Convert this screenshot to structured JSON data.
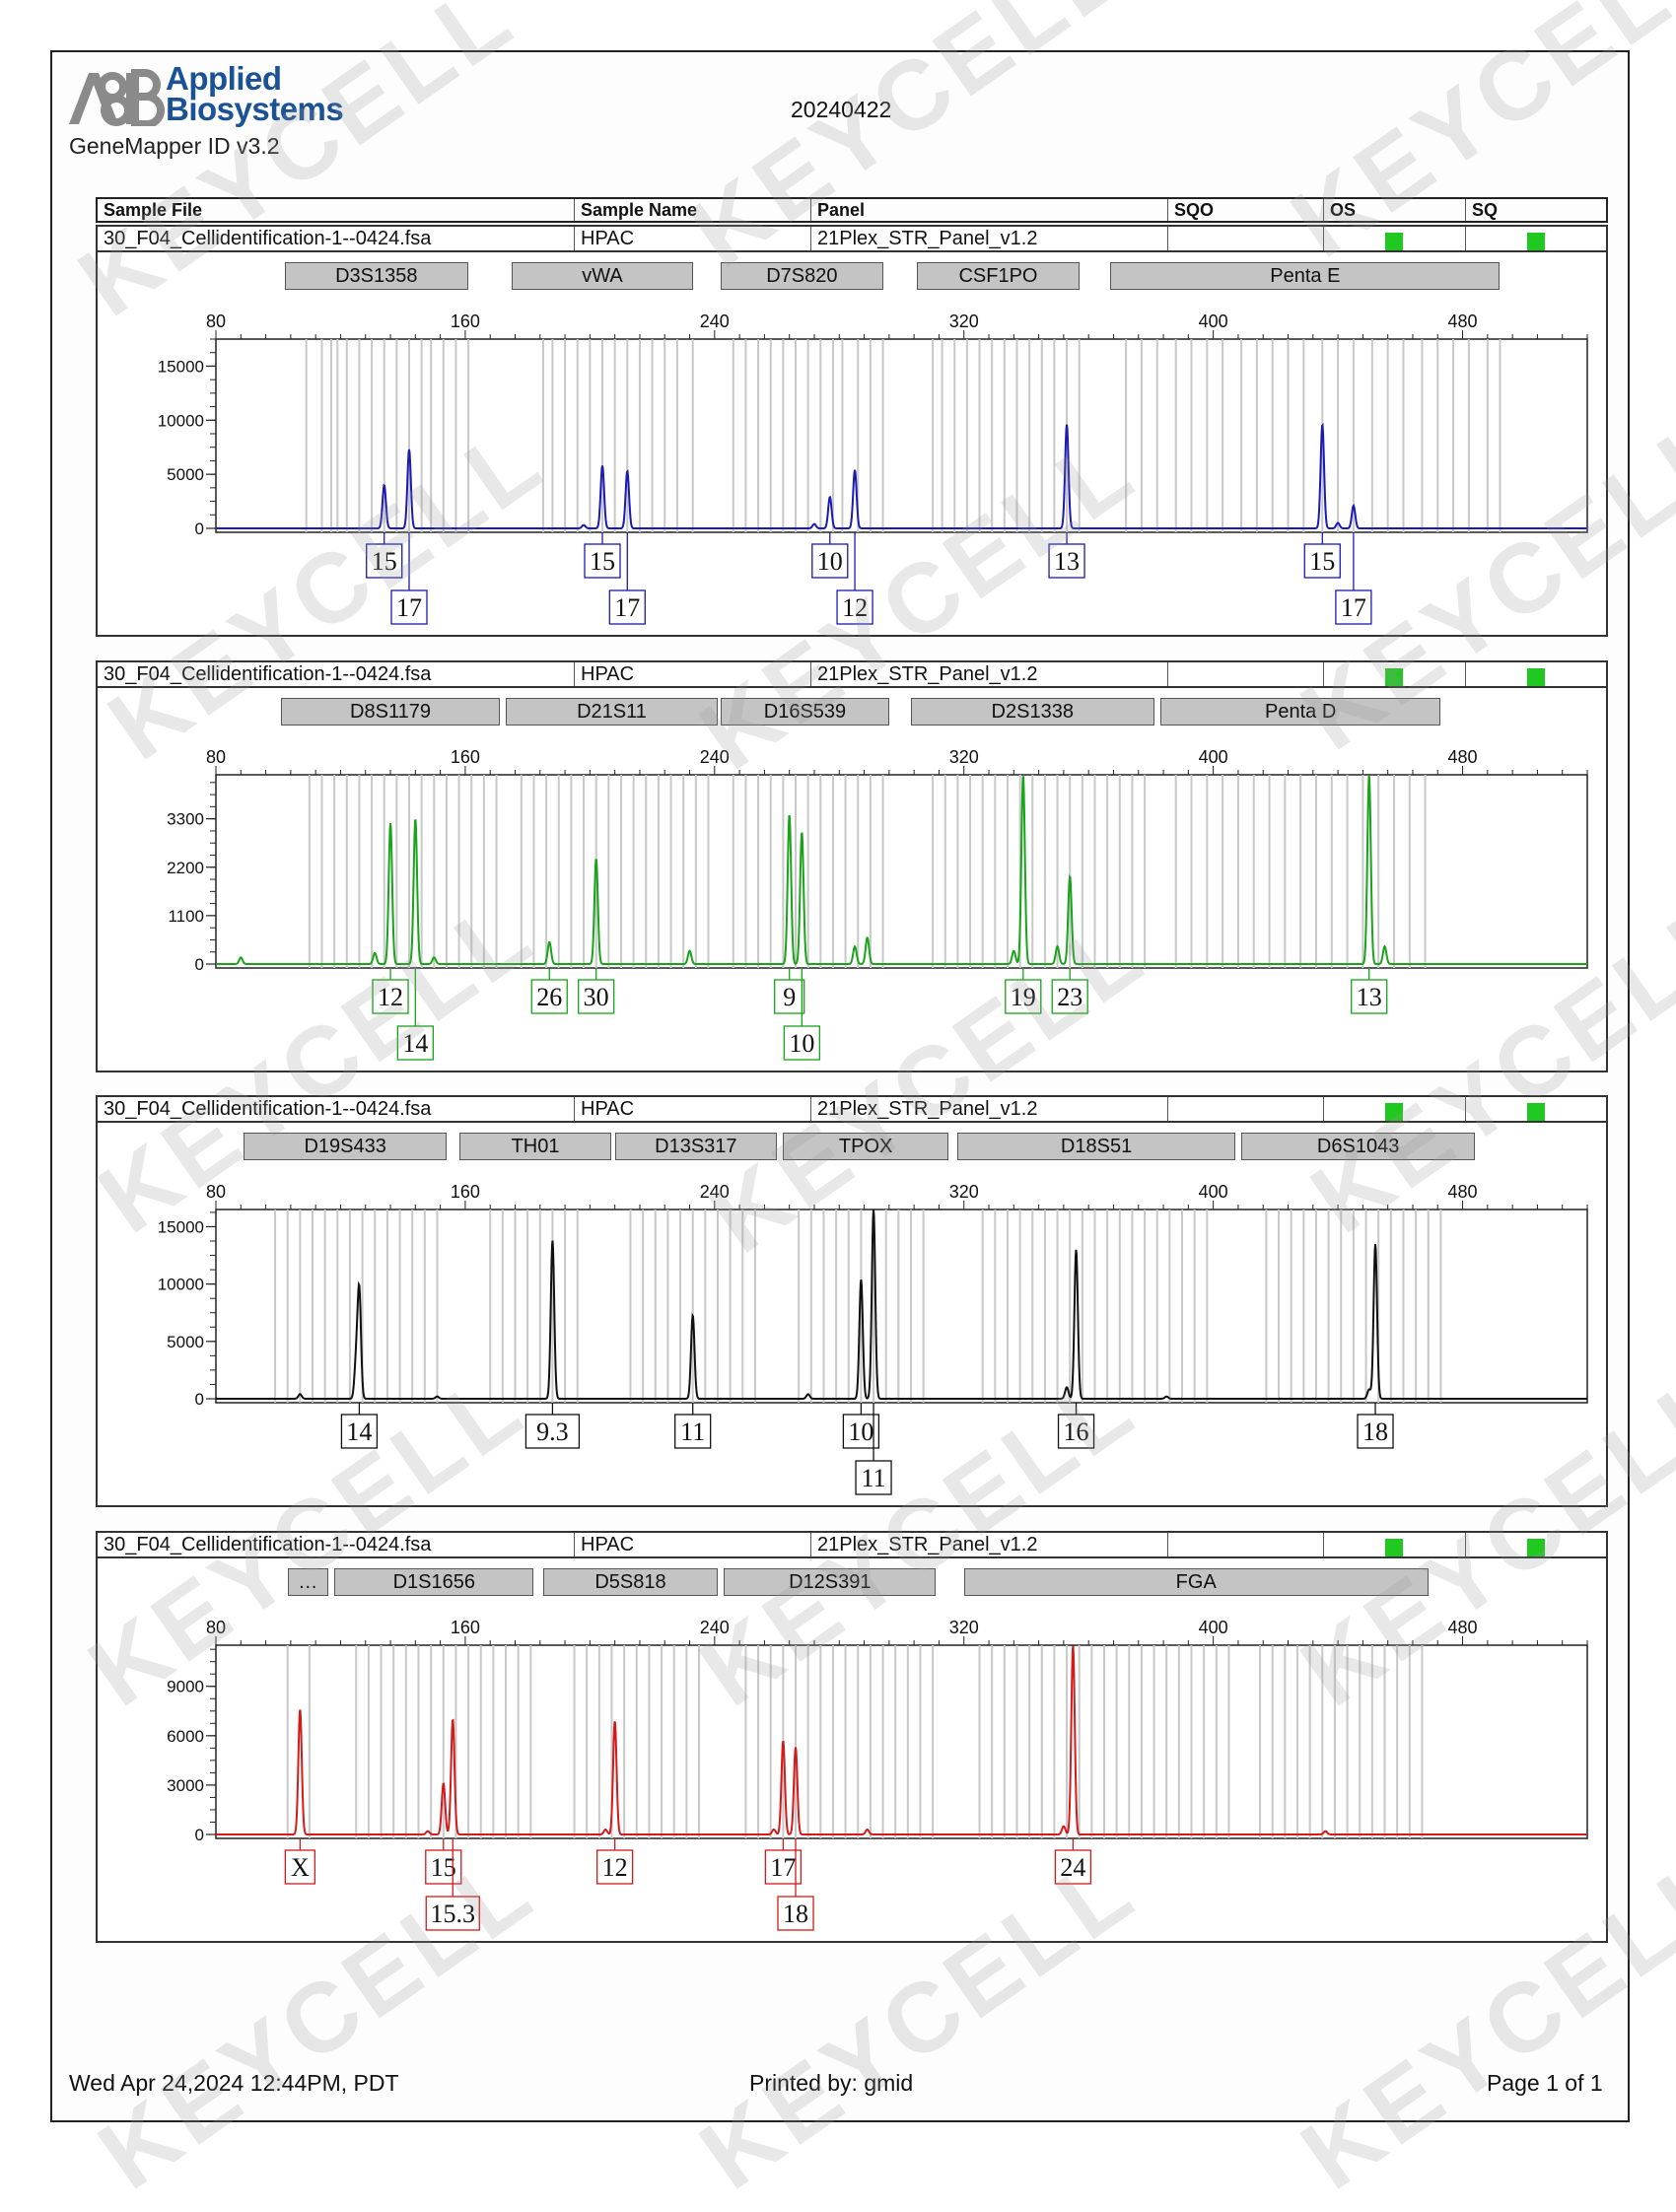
{
  "header": {
    "brand_line1": "Applied",
    "brand_line2": "Biosystems",
    "date": "20240422",
    "software": "GeneMapper ID v3.2"
  },
  "columns": [
    "Sample File",
    "Sample Name",
    "Panel",
    "SQO",
    "OS",
    "SQ"
  ],
  "sample": {
    "file": "30_F04_Cellidentification-1--0424.fsa",
    "name": "HPAC",
    "panel": "21Plex_STR_Panel_v1.2"
  },
  "colors": {
    "blue": "#1a1ab4",
    "green": "#18a418",
    "black": "#111111",
    "red": "#d41a1a",
    "quality": "#20c820"
  },
  "footer": {
    "timestamp": "Wed Apr 24,2024 12:44PM, PDT",
    "printed_by": "Printed by: gmid",
    "page": "Page 1 of 1"
  },
  "watermark": "KEYCELL",
  "chart_data": [
    {
      "type": "line",
      "dye": "blue",
      "x_ticks": [
        80,
        160,
        240,
        320,
        400,
        480
      ],
      "xlim": [
        80,
        520
      ],
      "y_ticks": [
        0,
        5000,
        10000,
        15000
      ],
      "ylim": [
        0,
        17500
      ],
      "loci": [
        {
          "name": "D3S1358",
          "start": 102,
          "end": 161
        },
        {
          "name": "vWA",
          "start": 175,
          "end": 233
        },
        {
          "name": "D7S820",
          "start": 242,
          "end": 294
        },
        {
          "name": "CSF1PO",
          "start": 305,
          "end": 357
        },
        {
          "name": "Penta E",
          "start": 367,
          "end": 492
        }
      ],
      "peaks": [
        {
          "x": 134,
          "y": 4000,
          "label": "15",
          "row": 0
        },
        {
          "x": 142,
          "y": 7300,
          "label": "17",
          "row": 1
        },
        {
          "x": 204,
          "y": 5800,
          "label": "15",
          "row": 0
        },
        {
          "x": 212,
          "y": 5300,
          "label": "17",
          "row": 1
        },
        {
          "x": 277,
          "y": 2900,
          "label": "10",
          "row": 0
        },
        {
          "x": 285,
          "y": 5400,
          "label": "12",
          "row": 1
        },
        {
          "x": 353,
          "y": 9600,
          "label": "13",
          "row": 0
        },
        {
          "x": 435,
          "y": 9600,
          "label": "15",
          "row": 0
        },
        {
          "x": 445,
          "y": 2100,
          "label": "17",
          "row": 1
        }
      ],
      "minor": [
        {
          "x": 198,
          "y": 300
        },
        {
          "x": 272,
          "y": 400
        },
        {
          "x": 440,
          "y": 500
        }
      ],
      "bins": [
        109,
        114,
        117,
        119,
        122,
        126,
        130,
        134,
        138,
        142,
        146,
        149,
        153,
        157,
        161,
        185,
        188,
        192,
        196,
        200,
        204,
        208,
        212,
        216,
        220,
        224,
        228,
        233,
        246,
        250,
        254,
        258,
        262,
        266,
        270,
        274,
        278,
        281,
        286,
        290,
        294,
        310,
        313,
        317,
        321,
        325,
        329,
        333,
        337,
        341,
        345,
        349,
        353,
        357,
        372,
        377,
        382,
        388,
        393,
        398,
        403,
        409,
        414,
        419,
        424,
        429,
        435,
        440,
        445,
        451,
        456,
        461,
        467,
        472,
        477,
        482,
        488,
        492
      ]
    },
    {
      "type": "line",
      "dye": "green",
      "x_ticks": [
        80,
        160,
        240,
        320,
        400,
        480
      ],
      "xlim": [
        80,
        520
      ],
      "y_ticks": [
        0,
        1100,
        2200,
        3300
      ],
      "ylim": [
        0,
        4300
      ],
      "loci": [
        {
          "name": "D8S1179",
          "start": 101,
          "end": 171
        },
        {
          "name": "D21S11",
          "start": 173,
          "end": 241
        },
        {
          "name": "D16S539",
          "start": 242,
          "end": 296
        },
        {
          "name": "D2S1338",
          "start": 303,
          "end": 381
        },
        {
          "name": "Penta D",
          "start": 383,
          "end": 473
        }
      ],
      "peaks": [
        {
          "x": 136,
          "y": 3200,
          "label": "12",
          "row": 0
        },
        {
          "x": 144,
          "y": 3300,
          "label": "14",
          "row": 1
        },
        {
          "x": 187,
          "y": 500,
          "label": "26",
          "row": 0
        },
        {
          "x": 202,
          "y": 2400,
          "label": "30",
          "row": 0
        },
        {
          "x": 264,
          "y": 3400,
          "label": "9",
          "row": 0
        },
        {
          "x": 268,
          "y": 3000,
          "label": "10",
          "row": 1
        },
        {
          "x": 339,
          "y": 4300,
          "label": "19",
          "row": 0
        },
        {
          "x": 354,
          "y": 2000,
          "label": "23",
          "row": 0
        },
        {
          "x": 450,
          "y": 4300,
          "label": "13",
          "row": 0
        }
      ],
      "minor": [
        {
          "x": 88,
          "y": 150
        },
        {
          "x": 131,
          "y": 250
        },
        {
          "x": 150,
          "y": 150
        },
        {
          "x": 232,
          "y": 300
        },
        {
          "x": 285,
          "y": 400
        },
        {
          "x": 289,
          "y": 600
        },
        {
          "x": 336,
          "y": 300
        },
        {
          "x": 350,
          "y": 400
        },
        {
          "x": 455,
          "y": 400
        }
      ],
      "bins": [
        110,
        114,
        118,
        122,
        126,
        130,
        134,
        138,
        142,
        146,
        150,
        154,
        158,
        162,
        166,
        170,
        178,
        182,
        186,
        190,
        194,
        198,
        202,
        206,
        210,
        214,
        218,
        222,
        226,
        230,
        234,
        238,
        246,
        250,
        254,
        258,
        262,
        266,
        270,
        274,
        278,
        282,
        286,
        290,
        294,
        310,
        314,
        318,
        322,
        326,
        330,
        334,
        338,
        342,
        346,
        350,
        354,
        358,
        362,
        366,
        370,
        374,
        378,
        388,
        393,
        398,
        403,
        408,
        413,
        418,
        423,
        428,
        433,
        438,
        443,
        448,
        453,
        458,
        463,
        468
      ]
    },
    {
      "type": "line",
      "dye": "black",
      "x_ticks": [
        80,
        160,
        240,
        320,
        400,
        480
      ],
      "xlim": [
        80,
        520
      ],
      "y_ticks": [
        0,
        5000,
        10000,
        15000
      ],
      "ylim": [
        0,
        16500
      ],
      "loci": [
        {
          "name": "D19S433",
          "start": 89,
          "end": 154
        },
        {
          "name": "TH01",
          "start": 158,
          "end": 207
        },
        {
          "name": "D13S317",
          "start": 208,
          "end": 260
        },
        {
          "name": "TPOX",
          "start": 262,
          "end": 315
        },
        {
          "name": "D18S51",
          "start": 318,
          "end": 407
        },
        {
          "name": "D6S1043",
          "start": 409,
          "end": 484
        }
      ],
      "peaks": [
        {
          "x": 126,
          "y": 9300,
          "label": "14",
          "row": 0
        },
        {
          "x": 188,
          "y": 13800,
          "label": "9.3",
          "row": 0
        },
        {
          "x": 233,
          "y": 7300,
          "label": "11",
          "row": 0
        },
        {
          "x": 287,
          "y": 10400,
          "label": "10",
          "row": 0
        },
        {
          "x": 291,
          "y": 16500,
          "label": "11",
          "row": 1
        },
        {
          "x": 356,
          "y": 13000,
          "label": "16",
          "row": 0
        },
        {
          "x": 452,
          "y": 13500,
          "label": "18",
          "row": 0
        }
      ],
      "minor": [
        {
          "x": 125,
          "y": 3200
        },
        {
          "x": 107,
          "y": 400
        },
        {
          "x": 151,
          "y": 200
        },
        {
          "x": 270,
          "y": 400
        },
        {
          "x": 353,
          "y": 1000
        },
        {
          "x": 450,
          "y": 800
        },
        {
          "x": 385,
          "y": 200
        }
      ],
      "bins": [
        99,
        103,
        107,
        111,
        115,
        119,
        123,
        127,
        131,
        135,
        139,
        143,
        147,
        151,
        168,
        172,
        176,
        180,
        184,
        188,
        192,
        196,
        213,
        217,
        221,
        225,
        229,
        233,
        237,
        241,
        245,
        249,
        253,
        267,
        271,
        275,
        279,
        283,
        287,
        291,
        295,
        299,
        303,
        307,
        326,
        330,
        334,
        338,
        342,
        346,
        350,
        354,
        358,
        362,
        366,
        370,
        374,
        378,
        382,
        386,
        390,
        394,
        398,
        417,
        421,
        425,
        429,
        433,
        437,
        441,
        445,
        449,
        453,
        457,
        461,
        465,
        469,
        473
      ]
    },
    {
      "type": "line",
      "dye": "red",
      "x_ticks": [
        80,
        160,
        240,
        320,
        400,
        480
      ],
      "xlim": [
        80,
        520
      ],
      "y_ticks": [
        0,
        3000,
        6000,
        9000
      ],
      "ylim": [
        0,
        11500
      ],
      "loci": [
        {
          "name": "…",
          "start": 103,
          "end": 116
        },
        {
          "name": "D1S1656",
          "start": 118,
          "end": 182
        },
        {
          "name": "D5S818",
          "start": 185,
          "end": 241
        },
        {
          "name": "D12S391",
          "start": 243,
          "end": 311
        },
        {
          "name": "FGA",
          "start": 320,
          "end": 469
        }
      ],
      "peaks": [
        {
          "x": 107,
          "y": 7600,
          "label": "X",
          "row": 0
        },
        {
          "x": 153,
          "y": 3100,
          "label": "15",
          "row": 0
        },
        {
          "x": 156,
          "y": 7000,
          "label": "15.3",
          "row": 1
        },
        {
          "x": 208,
          "y": 6900,
          "label": "12",
          "row": 0
        },
        {
          "x": 262,
          "y": 5700,
          "label": "17",
          "row": 0
        },
        {
          "x": 266,
          "y": 5300,
          "label": "18",
          "row": 1
        },
        {
          "x": 355,
          "y": 11500,
          "label": "24",
          "row": 0
        }
      ],
      "minor": [
        {
          "x": 148,
          "y": 200
        },
        {
          "x": 205,
          "y": 300
        },
        {
          "x": 259,
          "y": 300
        },
        {
          "x": 289,
          "y": 300
        },
        {
          "x": 352,
          "y": 500
        },
        {
          "x": 436,
          "y": 200
        }
      ],
      "bins": [
        103,
        110,
        125,
        129,
        133,
        137,
        141,
        145,
        149,
        153,
        157,
        161,
        165,
        169,
        173,
        177,
        181,
        195,
        199,
        203,
        207,
        211,
        215,
        219,
        223,
        227,
        231,
        235,
        250,
        254,
        258,
        262,
        266,
        270,
        274,
        278,
        282,
        286,
        290,
        294,
        298,
        302,
        306,
        310,
        325,
        329,
        333,
        337,
        341,
        345,
        349,
        353,
        357,
        361,
        365,
        369,
        373,
        377,
        381,
        385,
        389,
        393,
        397,
        401,
        405,
        415,
        419,
        423,
        427,
        431,
        435,
        439,
        443,
        447,
        451,
        455,
        459,
        463,
        467
      ]
    }
  ]
}
